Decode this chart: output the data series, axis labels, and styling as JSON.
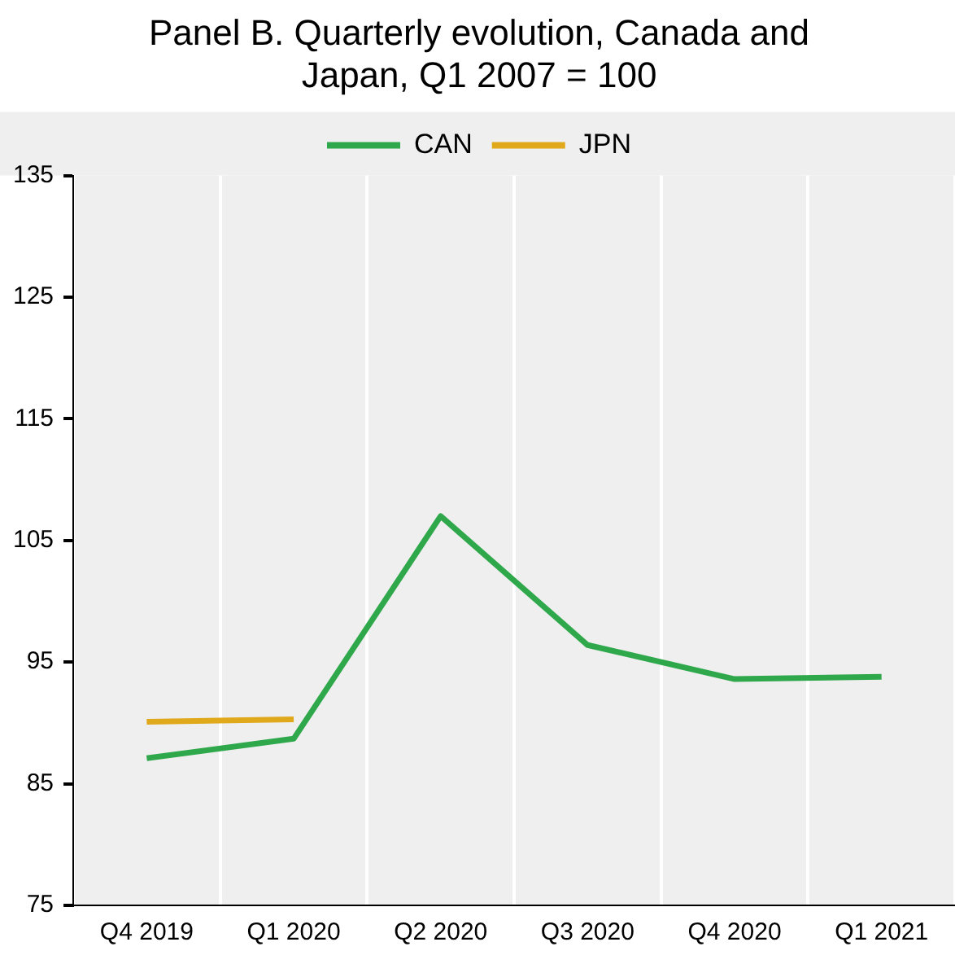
{
  "chart_data": {
    "type": "line",
    "title": "Panel B. Quarterly evolution, Canada and Japan, Q1 2007 = 100",
    "categories": [
      "Q4 2019",
      "Q1 2020",
      "Q2 2020",
      "Q3 2020",
      "Q4 2020",
      "Q1 2021"
    ],
    "series": [
      {
        "name": "CAN",
        "color": "#2ea84a",
        "values": [
          87.1,
          88.7,
          107.0,
          96.4,
          93.6,
          93.8
        ]
      },
      {
        "name": "JPN",
        "color": "#e0a91c",
        "values": [
          90.1,
          90.3,
          null,
          null,
          null,
          null
        ]
      }
    ],
    "ylim": [
      75,
      135
    ],
    "yticks": [
      75,
      85,
      95,
      105,
      115,
      125,
      135
    ],
    "grid": "x",
    "legend": "top",
    "marker": "none",
    "line_style": "solid"
  }
}
